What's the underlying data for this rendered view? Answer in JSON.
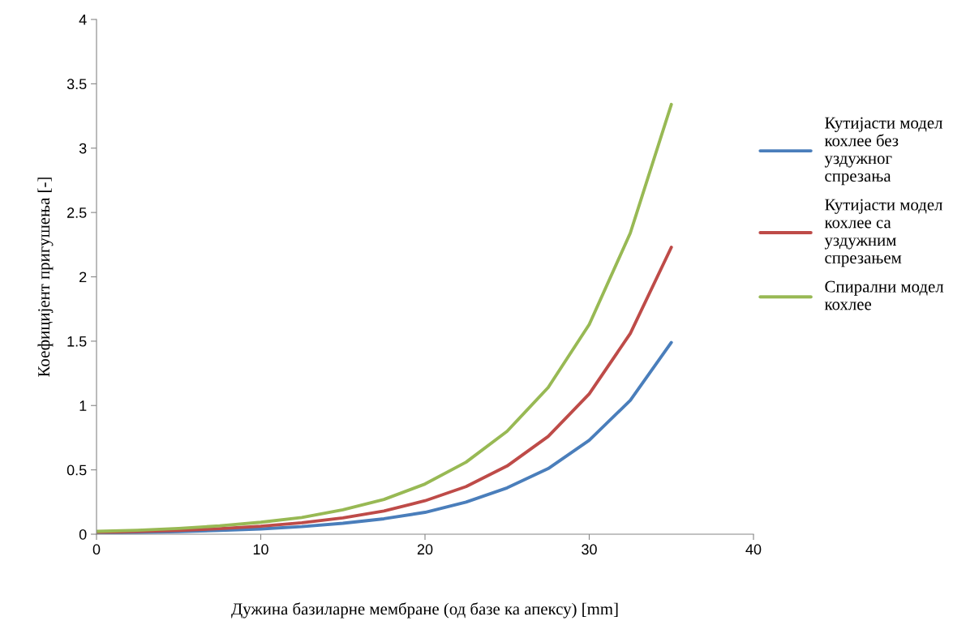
{
  "chart_data": {
    "type": "line",
    "xlabel": "Дужина базиларне мембране (од базе ка апексу) [mm]",
    "ylabel": "Коефицијент пригушења [-]",
    "x": [
      0,
      2.5,
      5,
      7.5,
      10,
      12.5,
      15,
      17.5,
      20,
      22.5,
      25,
      27.5,
      30,
      32.5,
      35
    ],
    "series": [
      {
        "name": "Кутијасти модел\nкохлее без\nуздужног\nспрезања",
        "color": "#4a7ebb",
        "values": [
          0.01,
          0.014,
          0.02,
          0.029,
          0.041,
          0.059,
          0.085,
          0.12,
          0.17,
          0.25,
          0.36,
          0.51,
          0.73,
          1.04,
          1.49
        ]
      },
      {
        "name": "Кутијасти модел\nкохлее са\nуздужним\nспрезањем",
        "color": "#be4b48",
        "values": [
          0.015,
          0.021,
          0.03,
          0.043,
          0.062,
          0.089,
          0.127,
          0.18,
          0.26,
          0.37,
          0.53,
          0.76,
          1.09,
          1.56,
          2.23
        ]
      },
      {
        "name": "Спирални модел\nкохлее",
        "color": "#98b954",
        "values": [
          0.022,
          0.031,
          0.045,
          0.065,
          0.093,
          0.13,
          0.19,
          0.27,
          0.39,
          0.56,
          0.8,
          1.14,
          1.63,
          2.34,
          3.34
        ]
      }
    ],
    "xlim": [
      0,
      40
    ],
    "xticks": [
      0,
      10,
      20,
      30,
      40
    ],
    "ylim": [
      0,
      4
    ],
    "yticks": [
      0,
      0.5,
      1,
      1.5,
      2,
      2.5,
      3,
      3.5,
      4
    ],
    "grid": false,
    "legend": "right",
    "marker": "none",
    "line_style": "solid"
  }
}
